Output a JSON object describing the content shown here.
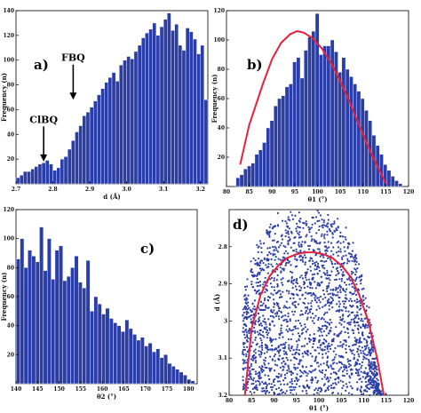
{
  "colors": {
    "bar": "#2b3ea8",
    "fit": "#e8203c",
    "point": "#2b3ea8",
    "axis": "#000000"
  },
  "chart_data": [
    {
      "id": "a",
      "type": "bar",
      "panel_label": "a)",
      "xlabel": "d (Å)",
      "ylabel": "Frequency (n)",
      "xlim": [
        2.7,
        3.22
      ],
      "ylim": [
        0,
        140
      ],
      "xticks": [
        2.7,
        2.8,
        2.9,
        3.0,
        3.1,
        3.2
      ],
      "xtick_labels": [
        "2.7",
        "2.8",
        "2.9",
        "3.0",
        "3.1",
        "3.2"
      ],
      "yticks": [
        20,
        40,
        60,
        80,
        100,
        120,
        140
      ],
      "bin_start": 2.705,
      "bin_width": 0.01,
      "values": [
        5,
        7,
        10,
        10,
        12,
        14,
        16,
        17,
        19,
        16,
        11,
        13,
        20,
        22,
        28,
        35,
        42,
        47,
        55,
        58,
        62,
        67,
        72,
        77,
        82,
        86,
        90,
        83,
        96,
        100,
        103,
        101,
        107,
        112,
        118,
        122,
        125,
        130,
        120,
        127,
        133,
        138,
        124,
        129,
        112,
        108,
        126,
        123,
        117,
        105,
        112,
        68
      ],
      "annotations": [
        {
          "text": "FBQ",
          "x": 2.855,
          "label_y": 95,
          "arrow_to_y": 68
        },
        {
          "text": "ClBQ",
          "x": 2.775,
          "label_y": 45,
          "arrow_to_y": 18
        }
      ]
    },
    {
      "id": "b",
      "type": "bar",
      "panel_label": "b)",
      "xlabel": "θ1 (°)",
      "ylabel": "Frequency (n)",
      "xlim": [
        80,
        120
      ],
      "ylim": [
        0,
        120
      ],
      "xticks": [
        80,
        85,
        90,
        95,
        100,
        105,
        110,
        115,
        120
      ],
      "xtick_labels": [
        "80",
        "85",
        "90",
        "95",
        "100",
        "105",
        "110",
        "115",
        "120"
      ],
      "yticks": [
        20,
        40,
        60,
        80,
        100,
        120
      ],
      "bin_start": 82.5,
      "bin_width": 0.83,
      "values": [
        6,
        8,
        12,
        14,
        16,
        22,
        25,
        30,
        40,
        45,
        55,
        60,
        62,
        68,
        70,
        85,
        88,
        74,
        93,
        102,
        106,
        118,
        90,
        96,
        96,
        100,
        92,
        78,
        88,
        80,
        75,
        70,
        65,
        60,
        52,
        45,
        35,
        28,
        22,
        15,
        11,
        7,
        4,
        2
      ],
      "fit_curve": {
        "x": [
          83,
          85,
          88,
          90,
          92,
          94,
          95.5,
          97,
          99,
          101,
          103,
          105,
          107,
          109,
          111,
          113,
          115
        ],
        "y": [
          15,
          42,
          70,
          87,
          98,
          104,
          106,
          105,
          101,
          94,
          84,
          72,
          58,
          43,
          28,
          15,
          2
        ]
      }
    },
    {
      "id": "c",
      "type": "bar",
      "panel_label": "c)",
      "xlabel": "θ2 (°)",
      "ylabel": "Frequency (n)",
      "xlim": [
        140,
        182
      ],
      "ylim": [
        0,
        120
      ],
      "xticks": [
        140,
        145,
        150,
        155,
        160,
        165,
        170,
        175,
        180
      ],
      "xtick_labels": [
        "140",
        "145",
        "150",
        "155",
        "160",
        "165",
        "170",
        "175",
        "180"
      ],
      "yticks": [
        20,
        40,
        60,
        80,
        100,
        120
      ],
      "bin_start": 140.5,
      "bin_width": 0.9,
      "values": [
        86,
        100,
        80,
        92,
        88,
        84,
        108,
        78,
        100,
        72,
        92,
        95,
        71,
        74,
        80,
        88,
        70,
        66,
        85,
        50,
        60,
        55,
        48,
        52,
        45,
        42,
        40,
        36,
        44,
        38,
        34,
        30,
        32,
        26,
        28,
        22,
        24,
        18,
        20,
        14,
        12,
        10,
        8,
        6,
        3,
        2
      ],
      "fit_curve": null
    },
    {
      "id": "d",
      "type": "scatter",
      "panel_label": "d)",
      "xlabel": "θ1 (°)",
      "ylabel": "d (Å)",
      "xlim": [
        80,
        120
      ],
      "ylim": [
        2.7,
        3.2
      ],
      "y_inverted": true,
      "xticks": [
        80,
        85,
        90,
        95,
        100,
        105,
        110,
        115,
        120
      ],
      "xtick_labels": [
        "80",
        "85",
        "90",
        "95",
        "100",
        "105",
        "110",
        "115",
        "120"
      ],
      "yticks": [
        2.8,
        2.9,
        3.0,
        3.1,
        3.2
      ],
      "ytick_labels": [
        "2.8",
        "2.9",
        "3",
        "3.1",
        "3.2"
      ],
      "point_cloud": {
        "count": 2300,
        "x_range": [
          83,
          115
        ],
        "x_center": 97,
        "y_range": [
          2.72,
          3.2
        ]
      },
      "fit_curve": {
        "x": [
          83.5,
          85,
          87,
          89,
          91,
          93,
          95,
          97,
          99,
          101,
          103,
          105,
          107,
          109,
          111,
          113,
          114.5
        ],
        "y": [
          3.2,
          3.02,
          2.93,
          2.88,
          2.85,
          2.83,
          2.82,
          2.815,
          2.815,
          2.82,
          2.83,
          2.85,
          2.88,
          2.93,
          3.0,
          3.1,
          3.2
        ]
      }
    }
  ]
}
